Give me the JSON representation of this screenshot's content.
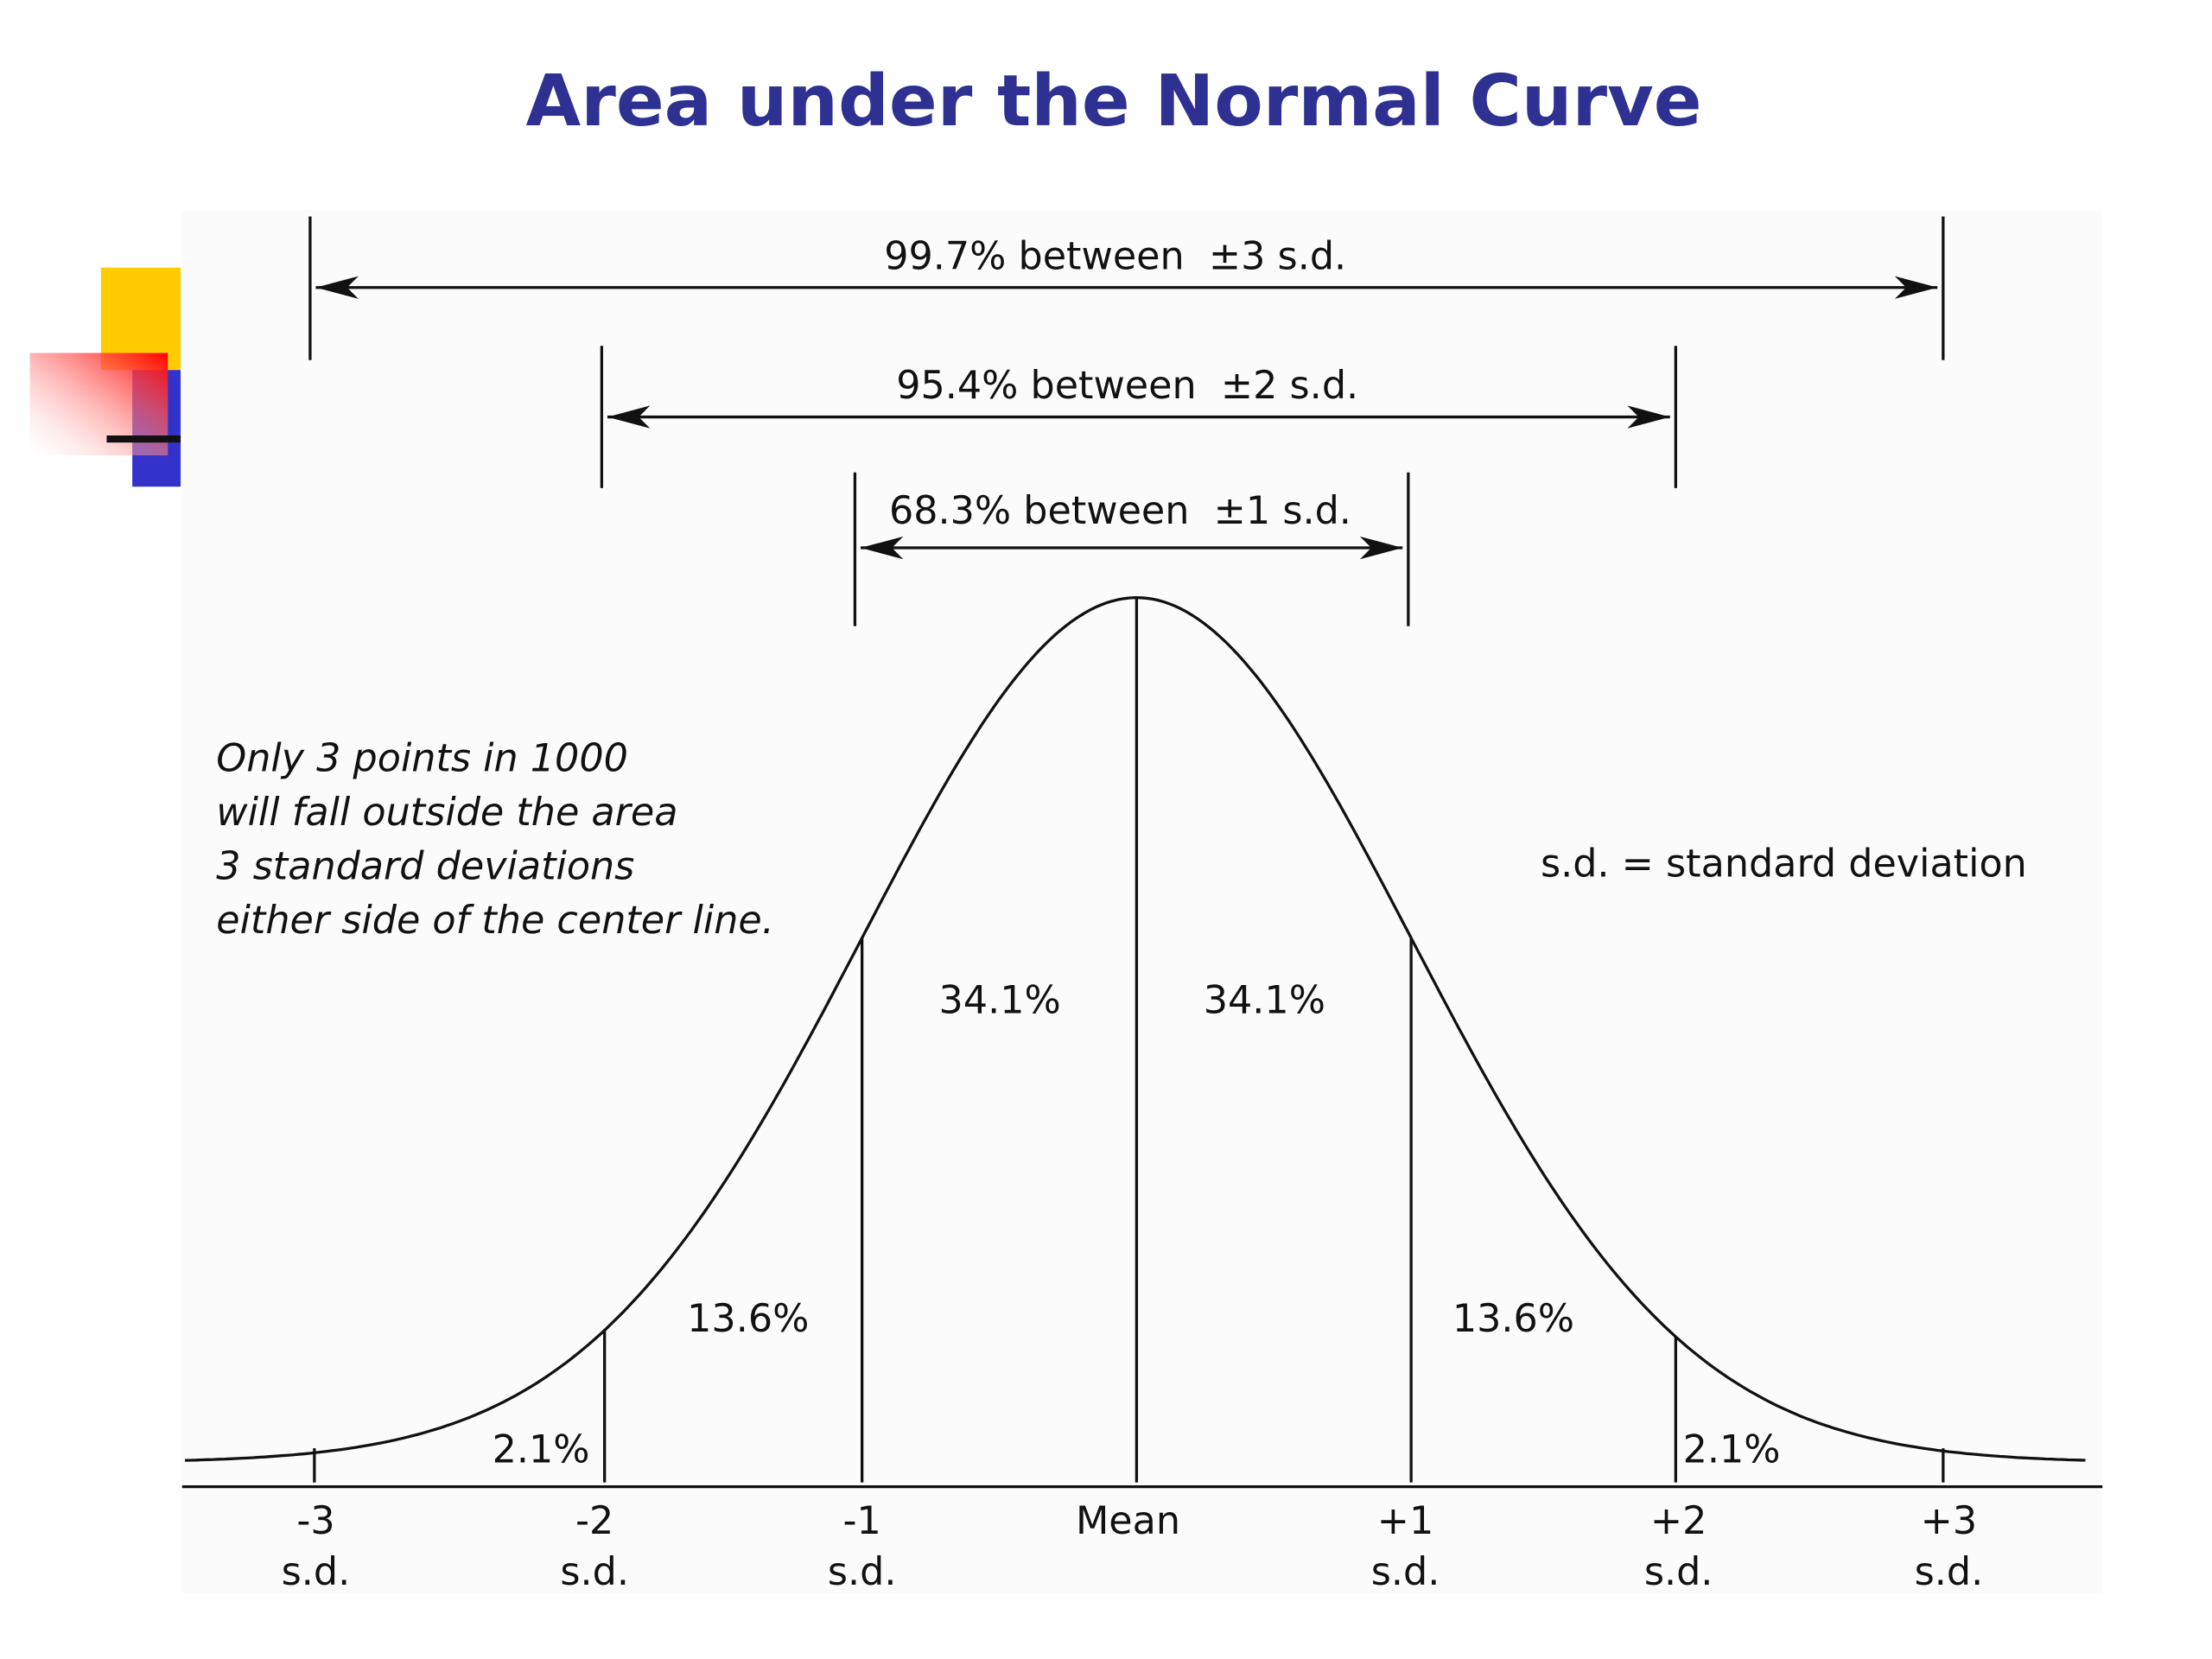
{
  "title": "Area under the Normal Curve",
  "ranges": [
    "99.7% between  ±3 s.d.",
    "95.4% between  ±2 s.d.",
    "68.3% between  ±1 s.d."
  ],
  "note": [
    "Only 3 points in 1000",
    "will fall outside the area",
    "3 standard deviations",
    "either side of the center line."
  ],
  "legend": "s.d. = standard deviation",
  "segments": [
    "2.1%",
    "13.6%",
    "34.1%",
    "34.1%",
    "13.6%",
    "2.1%"
  ],
  "axis_labels": [
    [
      "-3",
      "s.d."
    ],
    [
      "-2",
      "s.d."
    ],
    [
      "-1",
      "s.d."
    ],
    [
      "Mean"
    ],
    [
      "+1",
      "s.d."
    ],
    [
      "+2",
      "s.d."
    ],
    [
      "+3",
      "s.d."
    ]
  ]
}
